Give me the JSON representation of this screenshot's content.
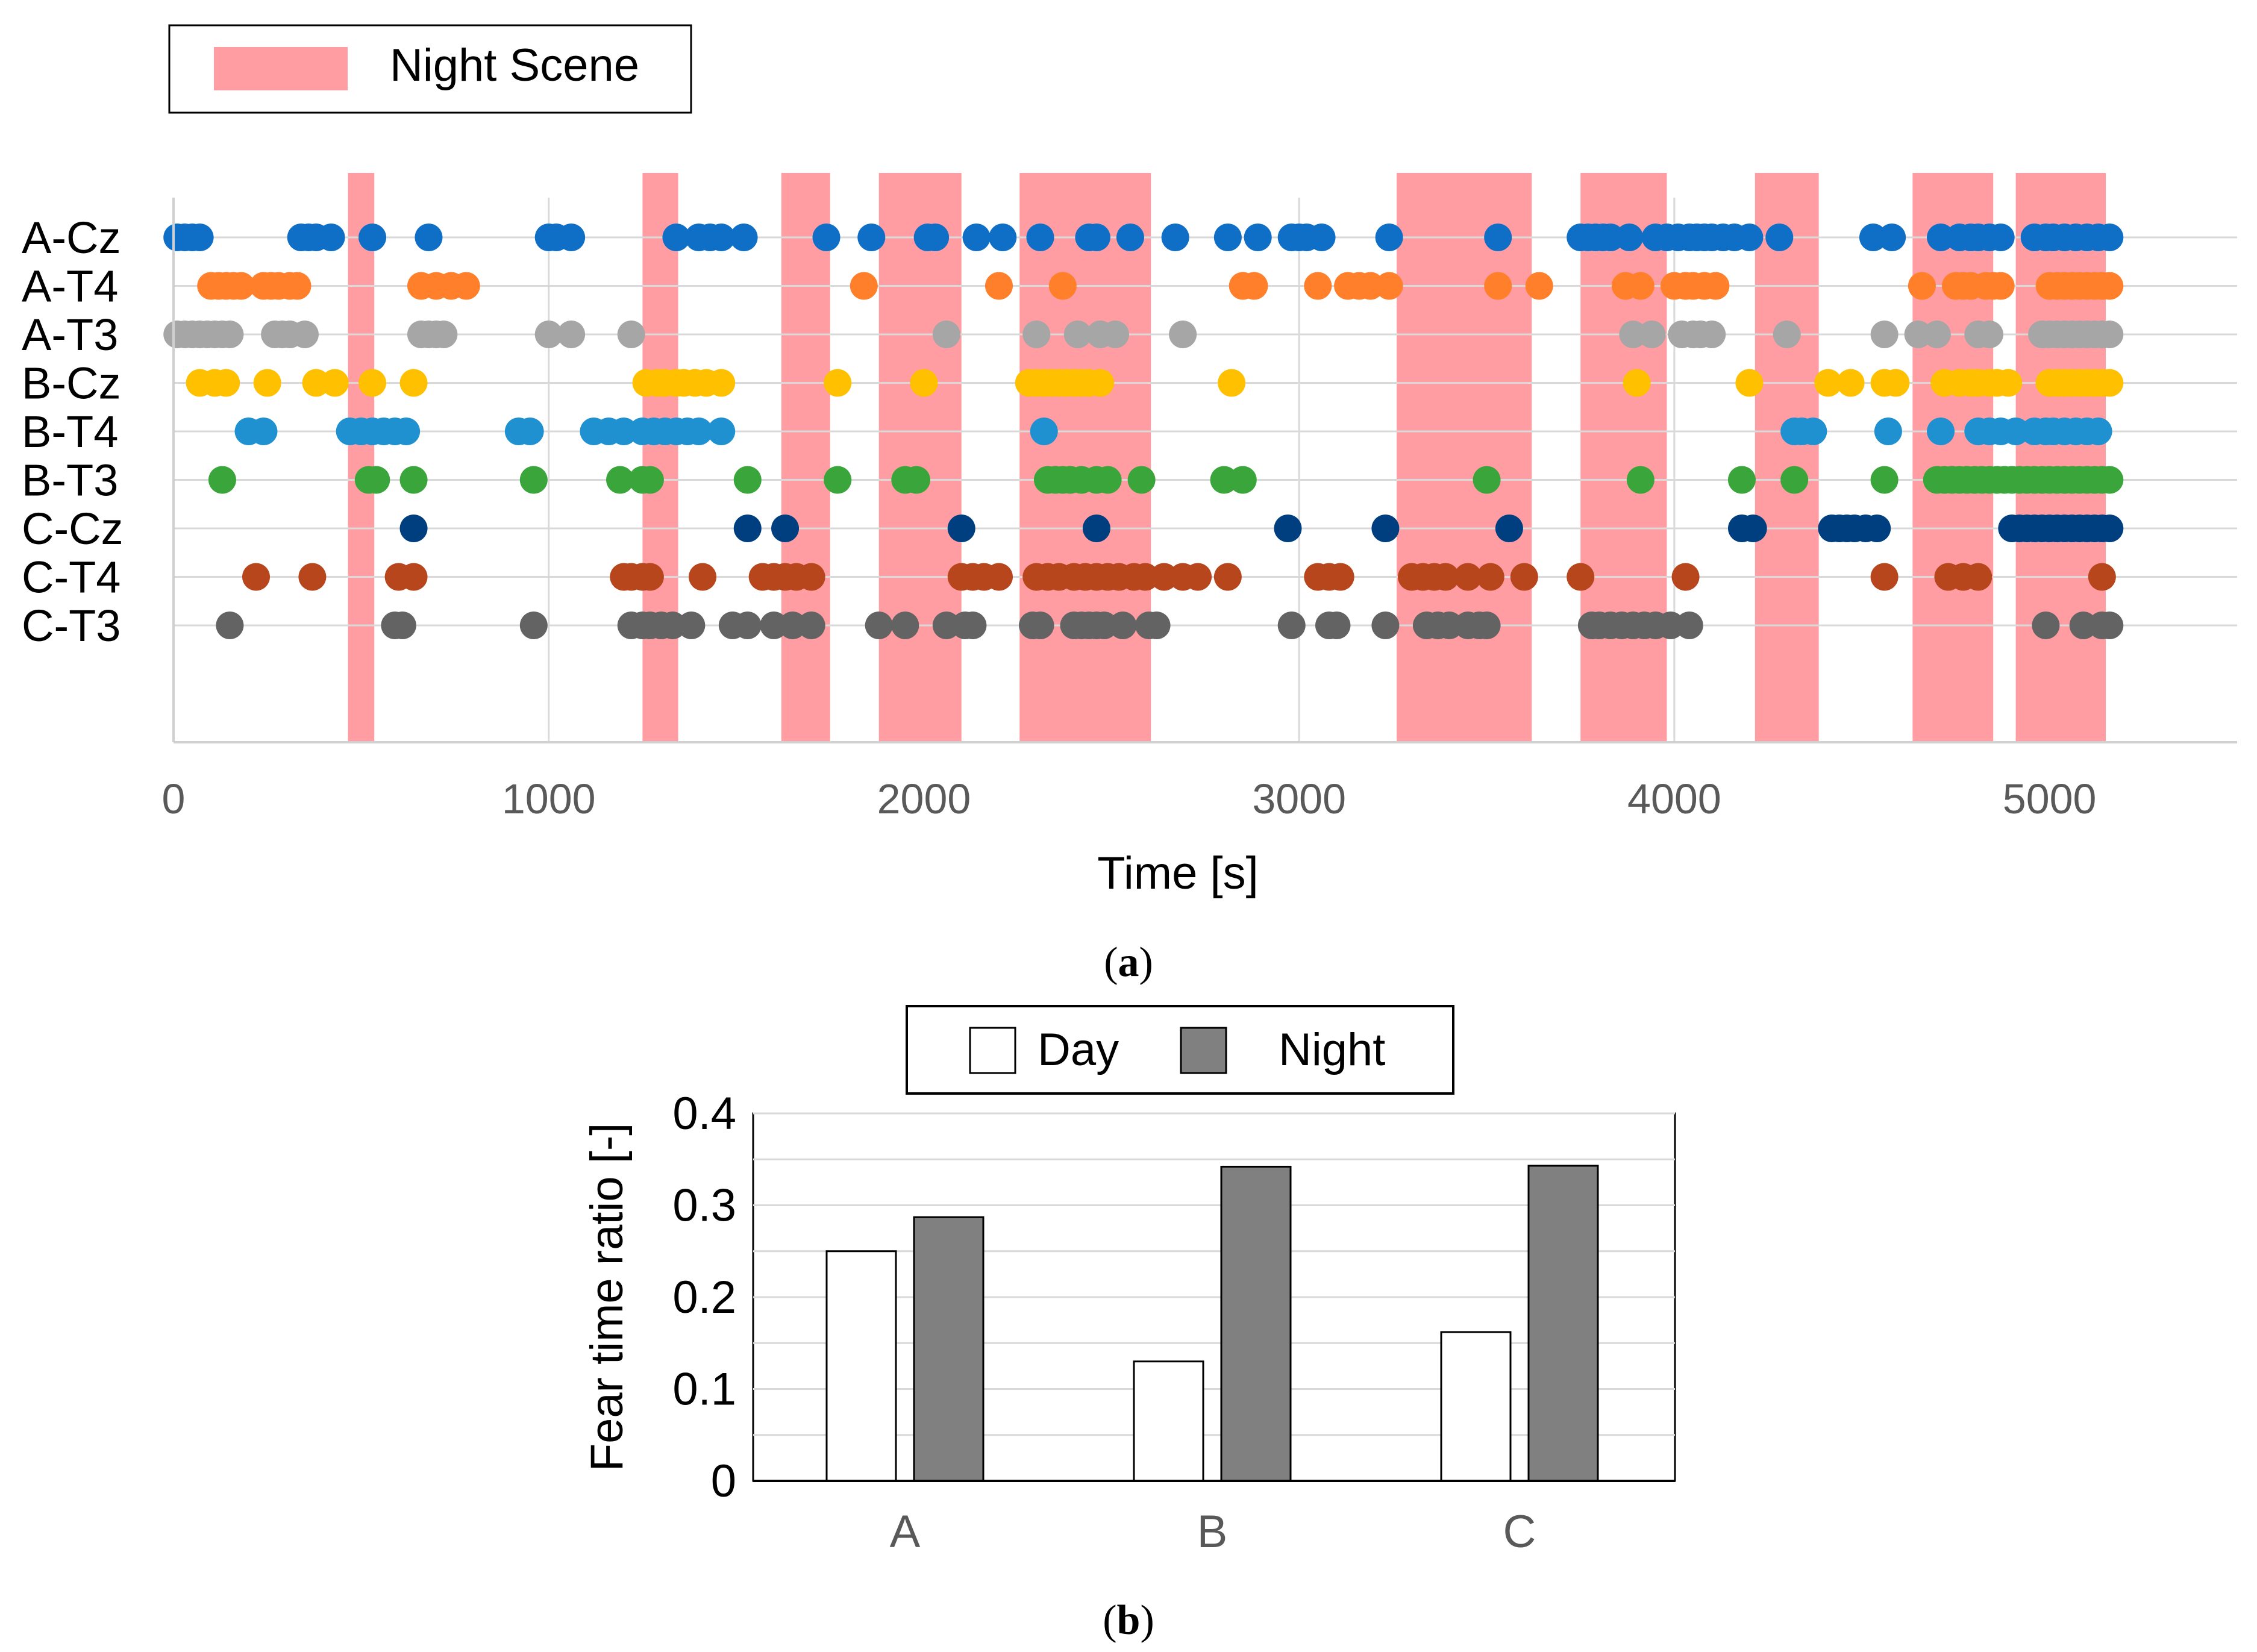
{
  "panel_a": {
    "label_open": "(",
    "label_letter": "a",
    "label_close": ")",
    "legend_label": "Night Scene"
  },
  "panel_b": {
    "label_open": "(",
    "label_letter": "b",
    "label_close": ")",
    "legend_day": "Day",
    "legend_night": "Night"
  },
  "colors": {
    "night_band": "#ff9da2",
    "day_bar": "#ffffff",
    "night_bar": "#808080",
    "grid": "#d9d9d9"
  },
  "chart_data": [
    {
      "type": "scatter",
      "title": "",
      "xlabel": "Time [s]",
      "ylabel": "",
      "xlim": [
        0,
        5500
      ],
      "xticks": [
        0,
        1000,
        2000,
        3000,
        4000,
        5000
      ],
      "xtick_labels": [
        "0",
        "1000",
        "2000",
        "3000",
        "4000",
        "5000"
      ],
      "legend": [
        "Night Scene"
      ],
      "legend_position": "top-left",
      "night_scenes": [
        [
          465,
          535
        ],
        [
          1250,
          1345
        ],
        [
          1620,
          1750
        ],
        [
          1880,
          2100
        ],
        [
          2255,
          2605
        ],
        [
          3260,
          3620
        ],
        [
          3750,
          3980
        ],
        [
          4215,
          4385
        ],
        [
          4635,
          4850
        ],
        [
          4910,
          5150
        ]
      ],
      "rows": [
        {
          "name": "A-Cz",
          "color": "#0f6fc6",
          "times": [
            10,
            30,
            50,
            70,
            340,
            360,
            380,
            420,
            530,
            680,
            1000,
            1020,
            1060,
            1340,
            1400,
            1430,
            1460,
            1520,
            1740,
            1860,
            2010,
            2030,
            2140,
            2210,
            2310,
            2440,
            2460,
            2550,
            2670,
            2810,
            2890,
            2980,
            3000,
            3020,
            3060,
            3240,
            3530,
            3750,
            3770,
            3790,
            3810,
            3830,
            3880,
            3950,
            3980,
            4010,
            4040,
            4060,
            4080,
            4100,
            4130,
            4160,
            4200,
            4280,
            4530,
            4580,
            4710,
            4760,
            4790,
            4810,
            4840,
            4870,
            4960,
            4990,
            5010,
            5040,
            5070,
            5100,
            5130,
            5160
          ]
        },
        {
          "name": "A-T4",
          "color": "#ff7f2a",
          "times": [
            100,
            120,
            140,
            160,
            180,
            240,
            260,
            280,
            310,
            330,
            660,
            700,
            740,
            780,
            1840,
            2200,
            2370,
            2850,
            2880,
            3050,
            3130,
            3160,
            3190,
            3240,
            3530,
            3640,
            3870,
            3910,
            4000,
            4030,
            4050,
            4080,
            4110,
            4660,
            4750,
            4770,
            4790,
            4830,
            4850,
            4870,
            5000,
            5020,
            5040,
            5060,
            5080,
            5100,
            5120,
            5140,
            5160
          ]
        },
        {
          "name": "A-T3",
          "color": "#a6a6a6",
          "times": [
            10,
            30,
            50,
            70,
            90,
            110,
            130,
            150,
            270,
            290,
            310,
            350,
            660,
            680,
            700,
            720,
            1000,
            1060,
            1220,
            2060,
            2300,
            2410,
            2470,
            2510,
            2690,
            3890,
            3940,
            4020,
            4050,
            4070,
            4100,
            4300,
            4560,
            4650,
            4700,
            4810,
            4840,
            4980,
            5000,
            5020,
            5040,
            5060,
            5080,
            5100,
            5120,
            5140,
            5160
          ]
        },
        {
          "name": "B-Cz",
          "color": "#ffc000",
          "times": [
            70,
            110,
            140,
            250,
            380,
            430,
            530,
            640,
            1260,
            1290,
            1310,
            1340,
            1360,
            1390,
            1420,
            1460,
            1770,
            2000,
            2280,
            2300,
            2320,
            2340,
            2360,
            2380,
            2400,
            2420,
            2440,
            2470,
            2820,
            3900,
            4200,
            4410,
            4470,
            4560,
            4590,
            4720,
            4760,
            4790,
            4810,
            4840,
            4860,
            4890,
            5000,
            5020,
            5040,
            5060,
            5080,
            5100,
            5120,
            5140,
            5160
          ]
        },
        {
          "name": "B-T4",
          "color": "#1f91d0",
          "times": [
            200,
            240,
            470,
            500,
            530,
            560,
            590,
            620,
            920,
            950,
            1120,
            1160,
            1200,
            1250,
            1280,
            1310,
            1340,
            1370,
            1400,
            1460,
            2320,
            4320,
            4340,
            4370,
            4570,
            4710,
            4810,
            4840,
            4870,
            4910,
            4960,
            4990,
            5010,
            5040,
            5070,
            5100,
            5130
          ]
        },
        {
          "name": "B-T3",
          "color": "#3aa53a",
          "times": [
            130,
            520,
            540,
            640,
            960,
            1190,
            1250,
            1270,
            1530,
            1770,
            1950,
            1980,
            2330,
            2350,
            2370,
            2390,
            2420,
            2460,
            2490,
            2580,
            2800,
            2850,
            3500,
            3910,
            4180,
            4320,
            4560,
            4700,
            4720,
            4740,
            4760,
            4780,
            4800,
            4820,
            4840,
            4860,
            4880,
            4900,
            4920,
            4940,
            4960,
            4980,
            5000,
            5020,
            5040,
            5060,
            5080,
            5100,
            5120,
            5140,
            5160
          ]
        },
        {
          "name": "C-Cz",
          "color": "#003f7f",
          "times": [
            640,
            1530,
            1630,
            2100,
            2460,
            2970,
            3230,
            3560,
            4180,
            4210,
            4420,
            4440,
            4460,
            4480,
            4510,
            4540,
            4900,
            4920,
            4940,
            4960,
            4980,
            5000,
            5020,
            5040,
            5060,
            5080,
            5100,
            5120,
            5140,
            5160
          ]
        },
        {
          "name": "C-T4",
          "color": "#b8461d",
          "times": [
            220,
            370,
            600,
            640,
            1200,
            1220,
            1250,
            1270,
            1410,
            1570,
            1600,
            1630,
            1660,
            1700,
            2100,
            2130,
            2160,
            2200,
            2300,
            2330,
            2360,
            2400,
            2430,
            2460,
            2490,
            2520,
            2560,
            2590,
            2640,
            2690,
            2730,
            2810,
            3050,
            3080,
            3110,
            3300,
            3330,
            3360,
            3390,
            3450,
            3510,
            3600,
            3750,
            4030,
            4560,
            4730,
            4770,
            4810,
            5140
          ]
        },
        {
          "name": "C-T3",
          "color": "#636363",
          "times": [
            150,
            590,
            610,
            960,
            1220,
            1250,
            1270,
            1300,
            1330,
            1380,
            1490,
            1530,
            1600,
            1650,
            1700,
            1880,
            1950,
            2060,
            2110,
            2130,
            2290,
            2310,
            2400,
            2420,
            2440,
            2460,
            2480,
            2530,
            2600,
            2620,
            2980,
            3080,
            3100,
            3230,
            3340,
            3370,
            3400,
            3450,
            3480,
            3500,
            3780,
            3800,
            3830,
            3860,
            3890,
            3920,
            3950,
            3990,
            4040,
            4990,
            5090,
            5140,
            5160
          ]
        }
      ]
    },
    {
      "type": "bar",
      "title": "",
      "xlabel": "",
      "ylabel": "Fear time ratio [-]",
      "categories": [
        "A",
        "B",
        "C"
      ],
      "series": [
        {
          "name": "Day",
          "values": [
            0.25,
            0.13,
            0.162
          ]
        },
        {
          "name": "Night",
          "values": [
            0.287,
            0.342,
            0.343
          ]
        }
      ],
      "ylim": [
        0,
        0.4
      ],
      "yticks": [
        "0",
        "0.1",
        "0.2",
        "0.3",
        "0.4"
      ],
      "legend_position": "top"
    }
  ]
}
